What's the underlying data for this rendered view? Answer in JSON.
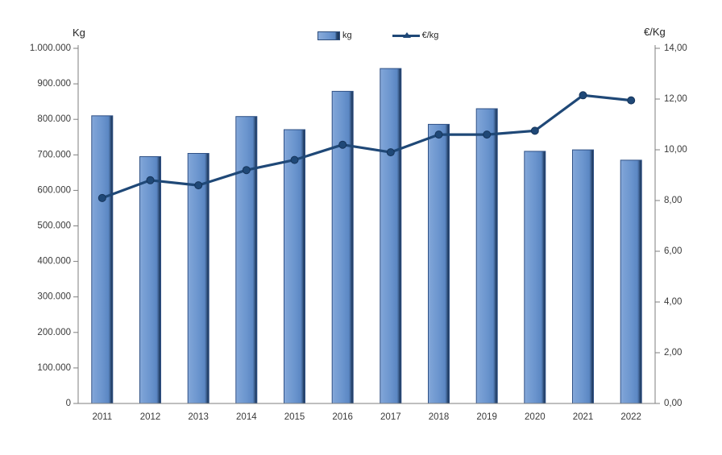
{
  "chart_data": {
    "type": "combo-bar-line",
    "title": "",
    "categories": [
      "2011",
      "2012",
      "2013",
      "2014",
      "2015",
      "2016",
      "2017",
      "2018",
      "2019",
      "2020",
      "2021",
      "2022"
    ],
    "series": [
      {
        "name": "kg",
        "type": "bar",
        "axis": "left",
        "color": "#6b95ce",
        "values": [
          810000,
          695000,
          704000,
          808000,
          771000,
          879000,
          943000,
          786000,
          830000,
          710000,
          714000,
          685000
        ]
      },
      {
        "name": "€/kg",
        "type": "line",
        "axis": "right",
        "color": "#1f4877",
        "values": [
          8.1,
          8.8,
          8.6,
          9.2,
          9.6,
          10.2,
          9.9,
          10.6,
          10.6,
          10.75,
          12.15,
          11.95
        ]
      }
    ],
    "left_axis": {
      "title": "Kg",
      "min": 0,
      "max": 1000000,
      "step": 100000,
      "tick_labels": [
        "1.000.000",
        "900.000",
        "800.000",
        "700.000",
        "600.000",
        "500.000",
        "400.000",
        "300.000",
        "200.000",
        "100.000",
        "0"
      ]
    },
    "right_axis": {
      "title": "€/Kg",
      "min": 0,
      "max": 14,
      "step": 2,
      "tick_labels": [
        "14,00",
        "12,00",
        "10,00",
        "8,00",
        "6,00",
        "4,00",
        "2,00",
        "0,00"
      ]
    },
    "legend": {
      "position": "top-center",
      "entries": [
        "kg",
        "€/kg"
      ]
    },
    "grid": false,
    "colors": {
      "bar_fill": "#6b95ce",
      "bar_highlight": "#89abda",
      "bar_shadow": "#1d3557",
      "bar_border": "#2f5186",
      "line": "#1f4877",
      "axis": "#7f7f7f",
      "text": "#3a3a3a"
    }
  }
}
